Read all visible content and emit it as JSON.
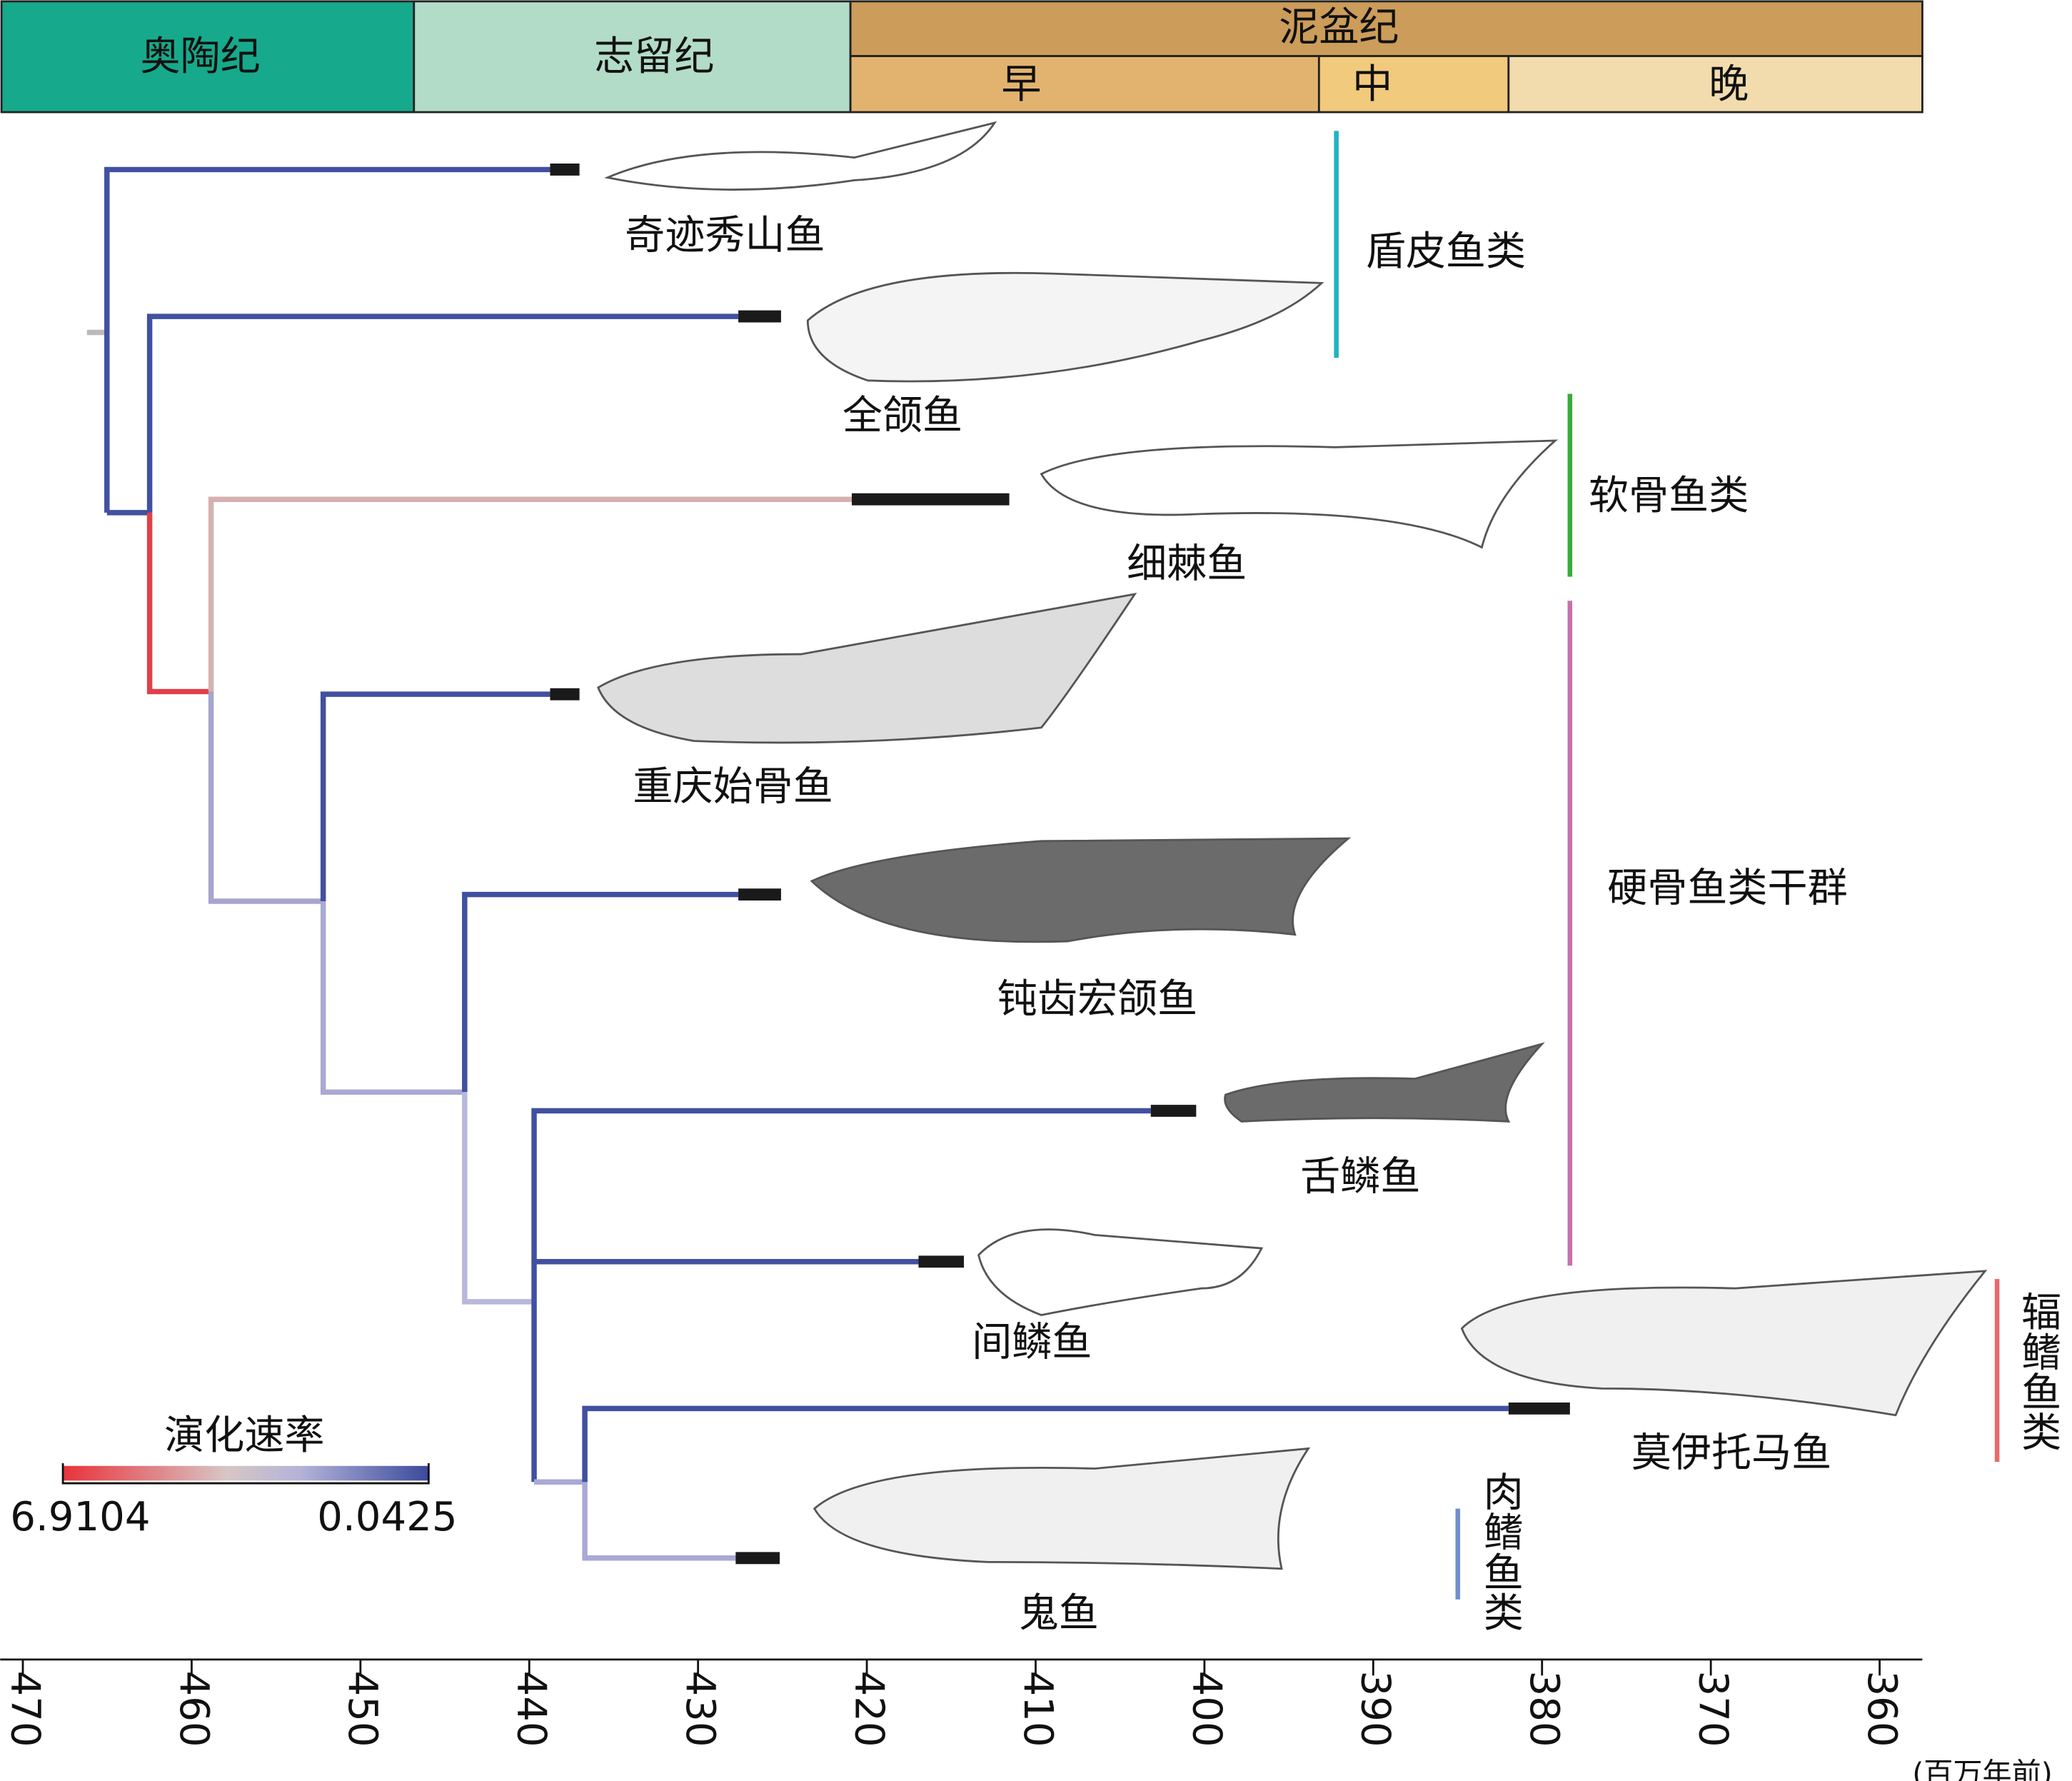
{
  "periods": {
    "ordovician": "奥陶纪",
    "silurian": "志留纪",
    "devonian": "泥盆纪",
    "early": "早",
    "middle": "中",
    "late": "晚"
  },
  "taxa": [
    "奇迹秀山鱼",
    "全颌鱼",
    "细棘鱼",
    "重庆始骨鱼",
    "钝齿宏颌鱼",
    "舌鳞鱼",
    "间鳞鱼",
    "莫伊托马鱼",
    "鬼鱼"
  ],
  "groups": [
    "盾皮鱼类",
    "软骨鱼类",
    "硬骨鱼类干群",
    "辐鳍鱼类",
    "肉鳍鱼类"
  ],
  "legend": {
    "title": "演化速率",
    "max": "6.9104",
    "min": "0.0425"
  },
  "axis": {
    "unit": "(百万年前)",
    "xlim": [
      470,
      360
    ],
    "xticks": [
      470,
      460,
      450,
      440,
      430,
      420,
      410,
      400,
      390,
      380,
      370,
      360
    ]
  }
}
